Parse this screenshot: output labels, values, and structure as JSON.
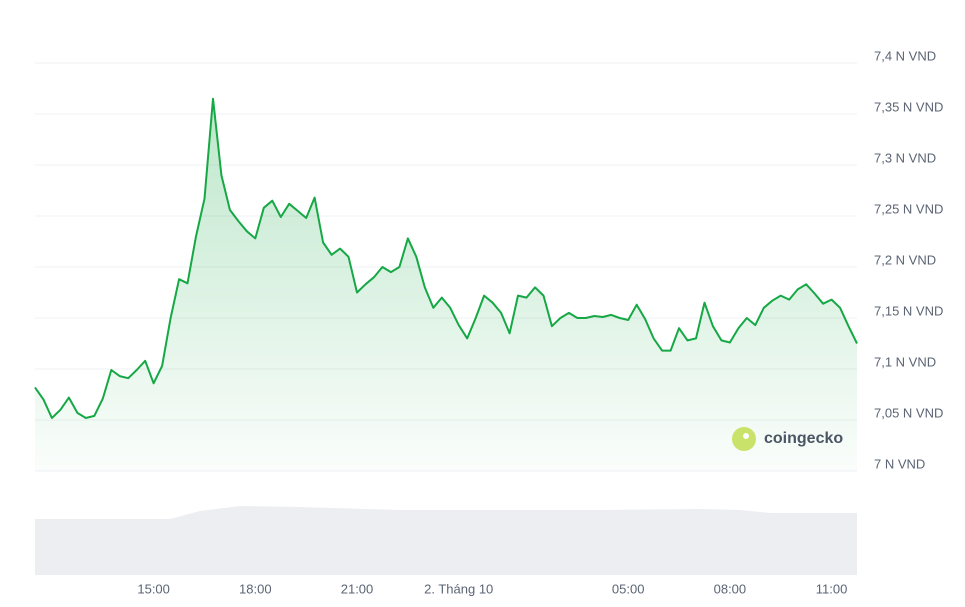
{
  "chart_data": {
    "type": "line",
    "watermark": "coingecko",
    "xlim": [
      11.5,
      35.75
    ],
    "xticks": [
      {
        "value": 15,
        "label": "15:00"
      },
      {
        "value": 18,
        "label": "18:00"
      },
      {
        "value": 21,
        "label": "21:00"
      },
      {
        "value": 24,
        "label": "2. Tháng 10"
      },
      {
        "value": 29,
        "label": "05:00"
      },
      {
        "value": 32,
        "label": "08:00"
      },
      {
        "value": 35,
        "label": "11:00"
      }
    ],
    "ylim": [
      7,
      7.4
    ],
    "yticks": [
      {
        "value": 7,
        "label": "7 N VND"
      },
      {
        "value": 7.05,
        "label": "7,05 N VND"
      },
      {
        "value": 7.1,
        "label": "7,1 N VND"
      },
      {
        "value": 7.15,
        "label": "7,15 N VND"
      },
      {
        "value": 7.2,
        "label": "7,2 N VND"
      },
      {
        "value": 7.25,
        "label": "7,25 N VND"
      },
      {
        "value": 7.3,
        "label": "7,3 N VND"
      },
      {
        "value": 7.35,
        "label": "7,35 N VND"
      },
      {
        "value": 7.4,
        "label": "7,4 N VND"
      }
    ],
    "grid": true,
    "series": [
      {
        "color": "#16a845",
        "x": [
          11.5,
          11.75,
          12,
          12.25,
          12.5,
          12.75,
          13,
          13.25,
          13.5,
          13.75,
          14,
          14.25,
          14.5,
          14.75,
          15,
          15.25,
          15.5,
          15.75,
          16,
          16.25,
          16.5,
          16.75,
          17,
          17.25,
          17.5,
          17.75,
          18,
          18.25,
          18.5,
          18.75,
          19,
          19.25,
          19.5,
          19.75,
          20,
          20.25,
          20.5,
          20.75,
          21,
          21.25,
          21.5,
          21.75,
          22,
          22.25,
          22.5,
          22.75,
          23,
          23.25,
          23.5,
          23.75,
          24,
          24.25,
          24.5,
          24.75,
          25,
          25.25,
          25.5,
          25.75,
          26,
          26.25,
          26.5,
          26.75,
          27,
          27.25,
          27.5,
          27.75,
          28,
          28.25,
          28.5,
          28.75,
          29,
          29.25,
          29.5,
          29.75,
          30,
          30.25,
          30.5,
          30.75,
          31,
          31.25,
          31.5,
          31.75,
          32,
          32.25,
          32.5,
          32.75,
          33,
          33.25,
          33.5,
          33.75,
          34,
          34.25,
          34.5,
          34.75,
          35,
          35.25,
          35.5,
          35.75
        ],
        "values": [
          7.082,
          7.07,
          7.052,
          7.06,
          7.072,
          7.057,
          7.052,
          7.054,
          7.071,
          7.099,
          7.093,
          7.091,
          7.099,
          7.108,
          7.086,
          7.103,
          7.15,
          7.188,
          7.184,
          7.23,
          7.267,
          7.365,
          7.29,
          7.256,
          7.245,
          7.235,
          7.228,
          7.258,
          7.265,
          7.249,
          7.262,
          7.255,
          7.248,
          7.268,
          7.224,
          7.212,
          7.218,
          7.21,
          7.175,
          7.183,
          7.19,
          7.2,
          7.195,
          7.2,
          7.228,
          7.21,
          7.18,
          7.16,
          7.17,
          7.16,
          7.143,
          7.13,
          7.15,
          7.172,
          7.165,
          7.155,
          7.135,
          7.172,
          7.17,
          7.18,
          7.172,
          7.142,
          7.15,
          7.155,
          7.15,
          7.15,
          7.152,
          7.151,
          7.153,
          7.15,
          7.148,
          7.163,
          7.149,
          7.13,
          7.118,
          7.118,
          7.14,
          7.128,
          7.13,
          7.165,
          7.142,
          7.128,
          7.126,
          7.14,
          7.15,
          7.143,
          7.16,
          7.167,
          7.172,
          7.168,
          7.178,
          7.183,
          7.174,
          7.164,
          7.168,
          7.16,
          7.142,
          7.125
        ]
      }
    ]
  }
}
